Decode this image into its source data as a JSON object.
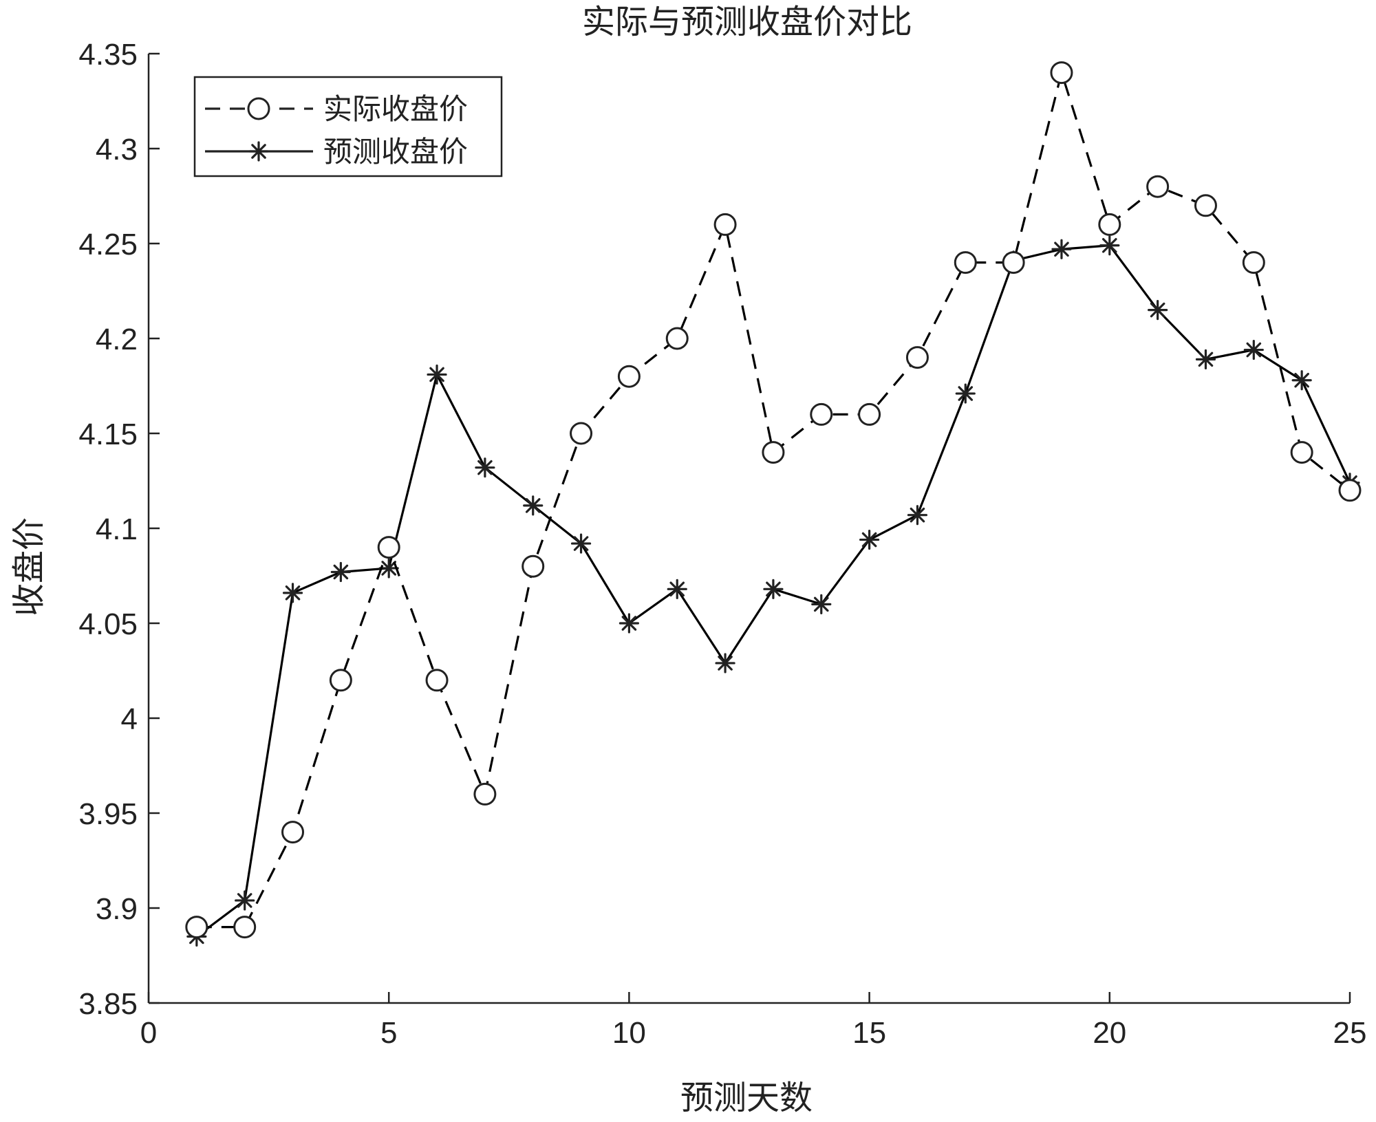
{
  "chart_data": {
    "type": "line",
    "title": "实际与预测收盘价对比",
    "xlabel": "预测天数",
    "ylabel": "收盘价",
    "xlim": [
      0,
      25
    ],
    "ylim": [
      3.85,
      4.35
    ],
    "xticks": [
      0,
      5,
      10,
      15,
      20,
      25
    ],
    "yticks": [
      3.85,
      3.9,
      3.95,
      4,
      4.05,
      4.1,
      4.15,
      4.2,
      4.25,
      4.3,
      4.35
    ],
    "x": [
      1,
      2,
      3,
      4,
      5,
      6,
      7,
      8,
      9,
      10,
      11,
      12,
      13,
      14,
      15,
      16,
      17,
      18,
      19,
      20,
      21,
      22,
      23,
      24,
      25
    ],
    "grid": false,
    "legend_position": "top-left",
    "series": [
      {
        "name": "实际收盘价",
        "line_style": "dashed",
        "marker": "circle",
        "color": "#000000",
        "values": [
          3.89,
          3.89,
          3.94,
          4.02,
          4.09,
          4.02,
          3.96,
          4.08,
          4.15,
          4.18,
          4.2,
          4.26,
          4.14,
          4.16,
          4.16,
          4.19,
          4.24,
          4.24,
          4.34,
          4.26,
          4.28,
          4.27,
          4.24,
          4.14,
          4.12
        ]
      },
      {
        "name": "预测收盘价",
        "line_style": "solid",
        "marker": "asterisk",
        "color": "#000000",
        "values": [
          3.885,
          3.904,
          4.066,
          4.077,
          4.079,
          4.181,
          4.132,
          4.112,
          4.092,
          4.05,
          4.068,
          4.029,
          4.068,
          4.06,
          4.094,
          4.107,
          4.171,
          4.241,
          4.247,
          4.249,
          4.215,
          4.189,
          4.194,
          4.178,
          4.124
        ]
      }
    ]
  }
}
